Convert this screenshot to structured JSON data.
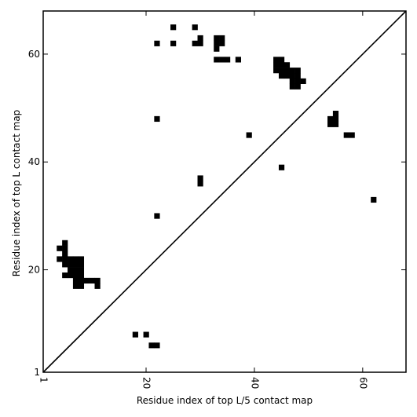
{
  "chart_data": {
    "type": "heatmap",
    "title": "",
    "xlabel": "Residue index of top L/5 contact map",
    "ylabel": "Residue index of top L contact map",
    "xlim": [
      1,
      68
    ],
    "ylim": [
      1,
      68
    ],
    "x_ticks": [
      {
        "value": 1,
        "label": "1"
      },
      {
        "value": 20,
        "label": "20"
      },
      {
        "value": 40,
        "label": "40"
      },
      {
        "value": 60,
        "label": "60"
      }
    ],
    "y_ticks": [
      {
        "value": 1,
        "label": "1"
      },
      {
        "value": 20,
        "label": "20"
      },
      {
        "value": 40,
        "label": "40"
      },
      {
        "value": 60,
        "label": "60"
      }
    ],
    "diagonal": true,
    "colors": {
      "cell": "#000000",
      "background": "#ffffff",
      "frame": "#000000"
    },
    "contacts": [
      [
        25,
        65
      ],
      [
        29,
        65
      ],
      [
        22,
        62
      ],
      [
        25,
        62
      ],
      [
        29,
        62
      ],
      [
        30,
        62
      ],
      [
        30,
        63
      ],
      [
        33,
        63
      ],
      [
        34,
        63
      ],
      [
        33,
        62
      ],
      [
        34,
        62
      ],
      [
        33,
        61
      ],
      [
        33,
        59
      ],
      [
        34,
        59
      ],
      [
        35,
        59
      ],
      [
        37,
        59
      ],
      [
        44,
        59
      ],
      [
        45,
        59
      ],
      [
        44,
        58
      ],
      [
        45,
        58
      ],
      [
        46,
        58
      ],
      [
        44,
        57
      ],
      [
        45,
        57
      ],
      [
        46,
        57
      ],
      [
        47,
        57
      ],
      [
        48,
        57
      ],
      [
        45,
        56
      ],
      [
        46,
        56
      ],
      [
        47,
        56
      ],
      [
        48,
        56
      ],
      [
        47,
        55
      ],
      [
        48,
        55
      ],
      [
        49,
        55
      ],
      [
        47,
        54
      ],
      [
        48,
        54
      ],
      [
        55,
        49
      ],
      [
        54,
        48
      ],
      [
        55,
        48
      ],
      [
        54,
        47
      ],
      [
        55,
        47
      ],
      [
        22,
        48
      ],
      [
        39,
        45
      ],
      [
        57,
        45
      ],
      [
        58,
        45
      ],
      [
        45,
        39
      ],
      [
        30,
        37
      ],
      [
        30,
        36
      ],
      [
        62,
        33
      ],
      [
        22,
        30
      ],
      [
        4,
        24
      ],
      [
        5,
        25
      ],
      [
        5,
        24
      ],
      [
        5,
        23
      ],
      [
        4,
        22
      ],
      [
        5,
        22
      ],
      [
        6,
        22
      ],
      [
        7,
        22
      ],
      [
        8,
        22
      ],
      [
        5,
        21
      ],
      [
        6,
        21
      ],
      [
        7,
        21
      ],
      [
        8,
        21
      ],
      [
        6,
        20
      ],
      [
        7,
        20
      ],
      [
        8,
        20
      ],
      [
        5,
        19
      ],
      [
        6,
        19
      ],
      [
        7,
        19
      ],
      [
        8,
        19
      ],
      [
        7,
        18
      ],
      [
        8,
        18
      ],
      [
        9,
        18
      ],
      [
        10,
        18
      ],
      [
        11,
        18
      ],
      [
        7,
        17
      ],
      [
        8,
        17
      ],
      [
        11,
        17
      ],
      [
        18,
        8
      ],
      [
        20,
        8
      ],
      [
        21,
        6
      ],
      [
        22,
        6
      ]
    ]
  }
}
